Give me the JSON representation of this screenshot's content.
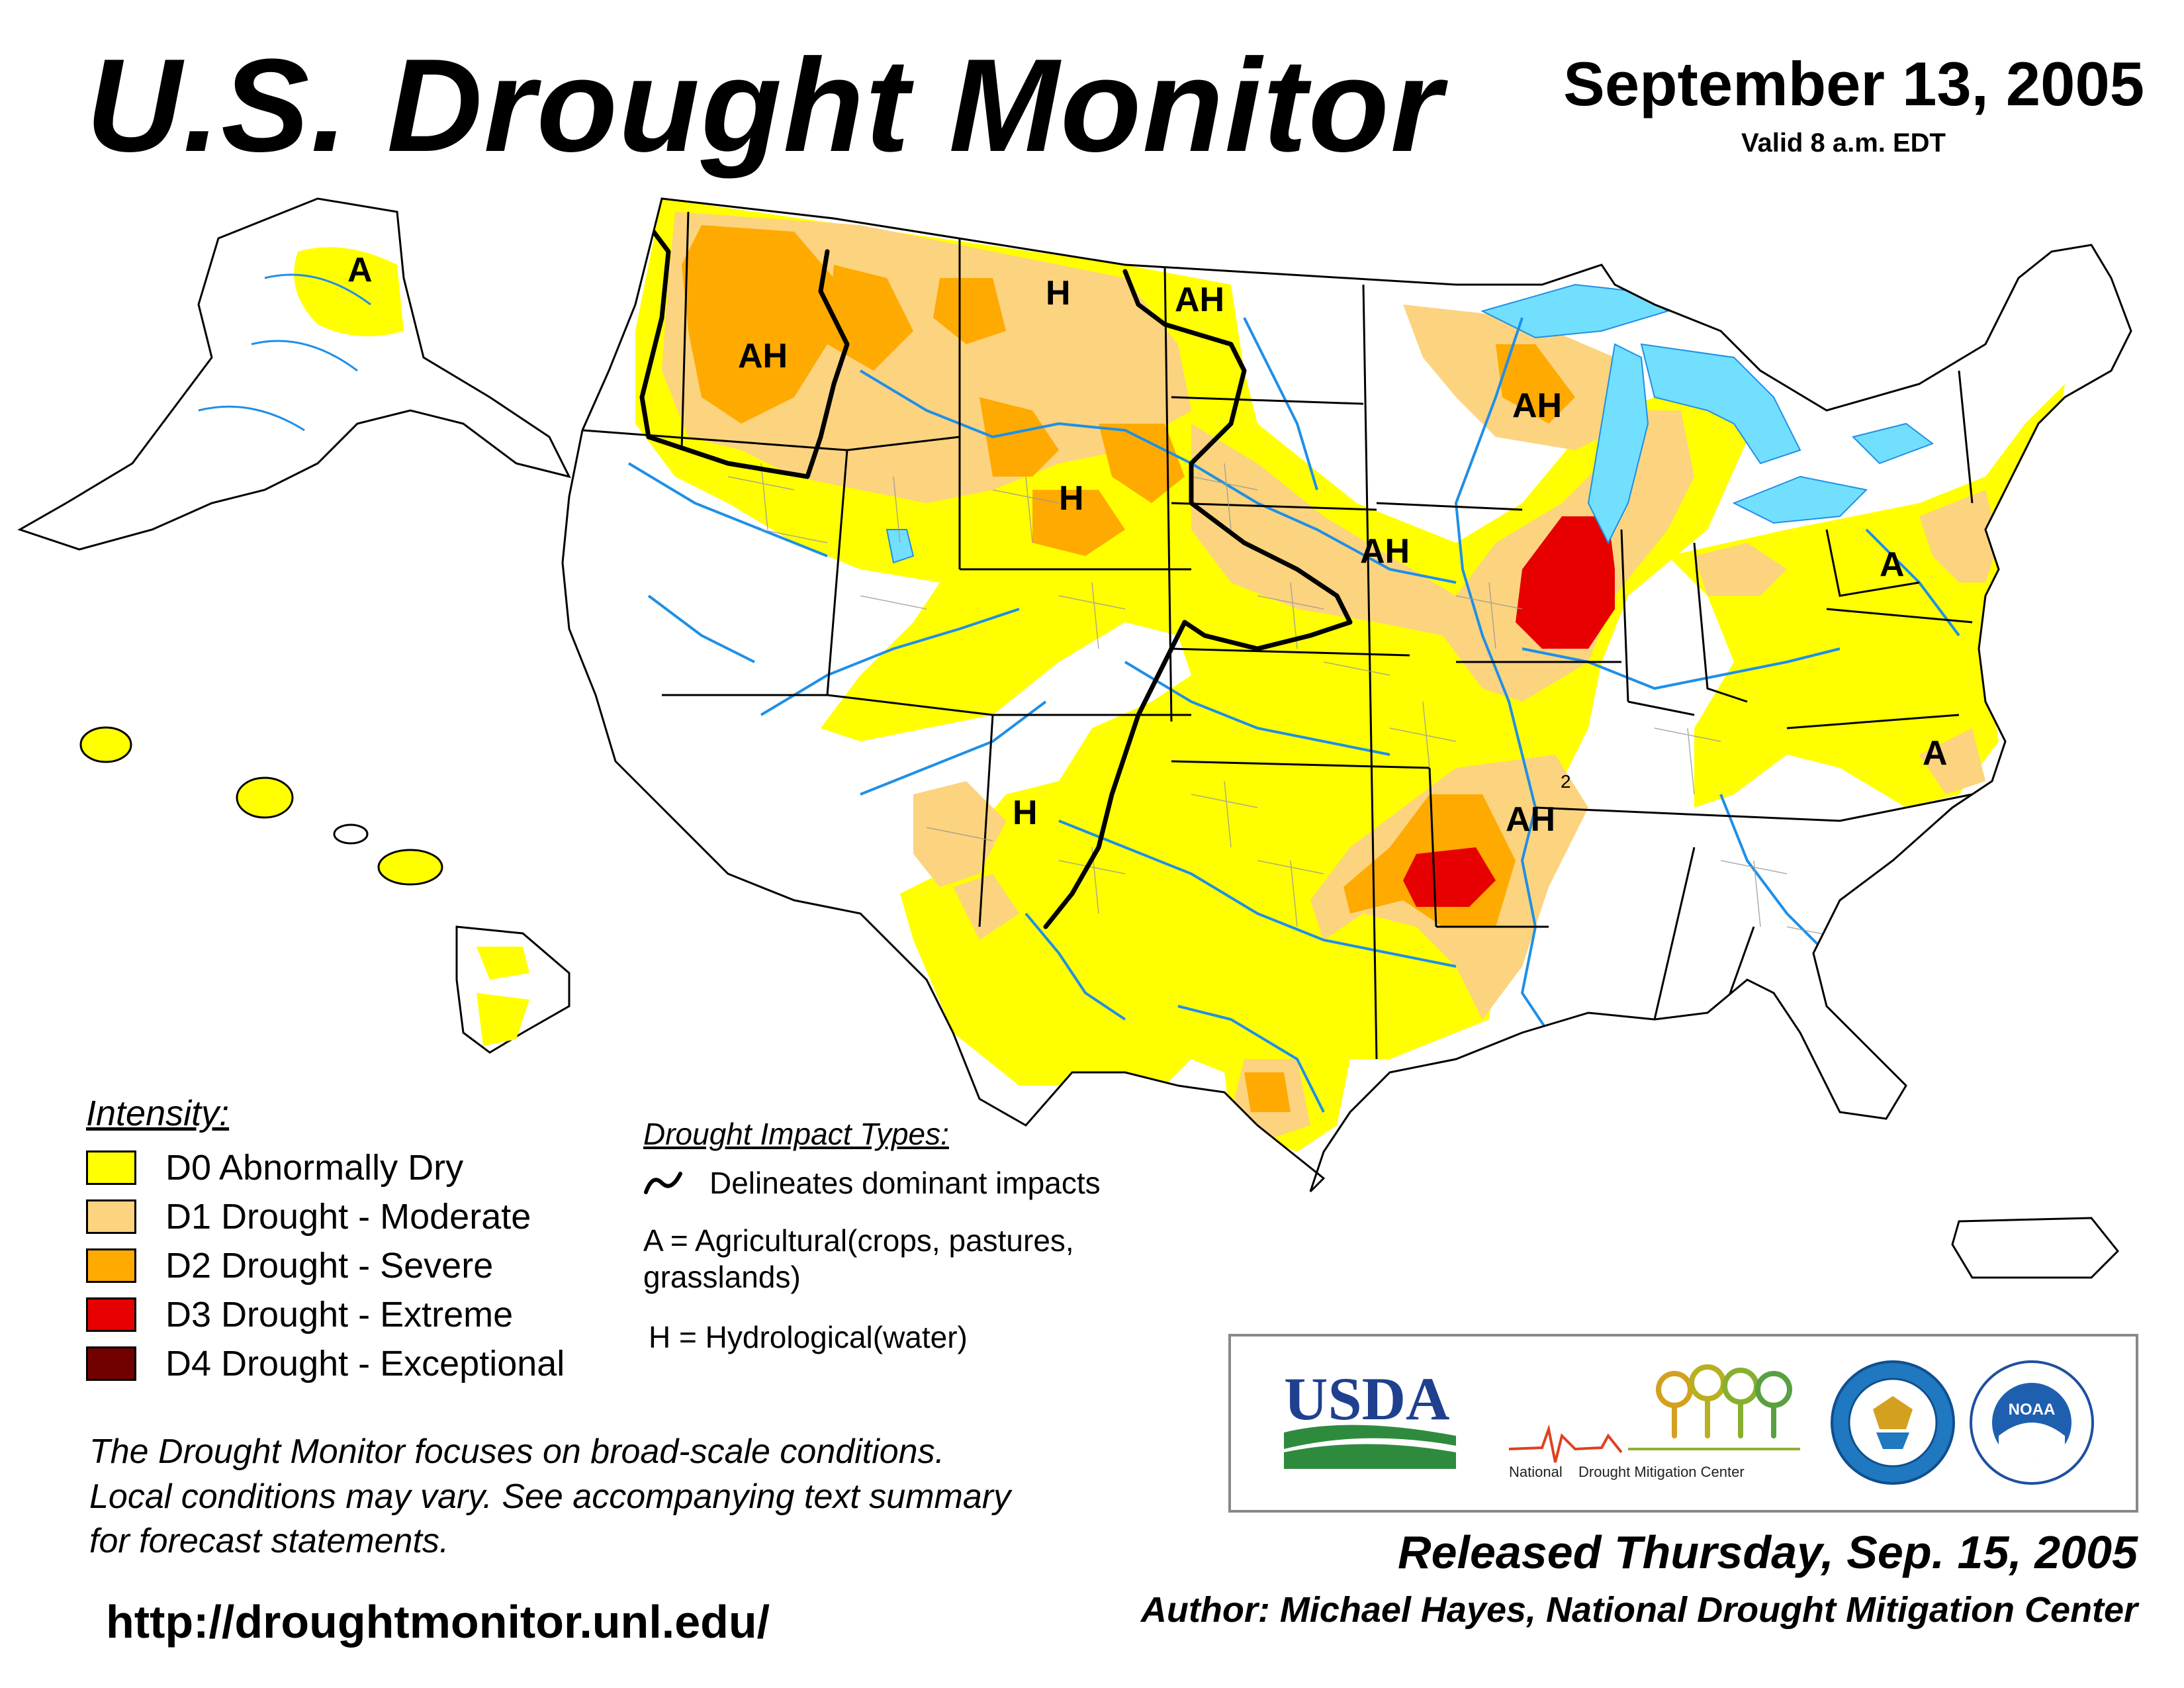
{
  "header": {
    "title": "U.S. Drought Monitor",
    "date": "September 13, 2005",
    "valid": "Valid 8 a.m. EDT"
  },
  "map": {
    "impact_labels": [
      "A",
      "AH",
      "H",
      "AH",
      "AH",
      "H",
      "AH",
      "A",
      "A",
      "H",
      "AH"
    ],
    "colors": {
      "D0": "#ffff00",
      "D1": "#fcd37f",
      "D2": "#ffaa00",
      "D3": "#e60000",
      "D4": "#730000",
      "water": "#73dfff",
      "rivers": "#1f8fe6",
      "borders": "#000000",
      "counties": "#999999"
    }
  },
  "legend": {
    "title": "Intensity:",
    "items": [
      {
        "code": "D0",
        "label": "D0 Abnormally Dry",
        "color": "#ffff00"
      },
      {
        "code": "D1",
        "label": "D1 Drought - Moderate",
        "color": "#fcd37f"
      },
      {
        "code": "D2",
        "label": "D2 Drought - Severe",
        "color": "#ffaa00"
      },
      {
        "code": "D3",
        "label": "D3 Drought - Extreme",
        "color": "#e60000"
      },
      {
        "code": "D4",
        "label": "D4 Drought - Exceptional",
        "color": "#730000"
      }
    ]
  },
  "impacts": {
    "title": "Drought Impact Types:",
    "delineates": "Delineates dominant impacts",
    "agricultural": "A = Agricultural(crops, pastures, grasslands)",
    "hydrological": "H = Hydrological(water)"
  },
  "disclaimer": {
    "line1": "The Drought Monitor focuses on broad-scale conditions.",
    "line2": "Local conditions may vary. See accompanying text summary",
    "line3": "for forecast statements."
  },
  "url": "http://droughtmonitor.unl.edu/",
  "logos": {
    "usda": "USDA",
    "ndmc_left": "National",
    "ndmc_right": "Drought Mitigation Center",
    "doc_icon": "department-of-commerce-seal-icon",
    "noaa_short": "NOAA",
    "noaa_icon": "noaa-seal-icon"
  },
  "footer": {
    "released": "Released Thursday, Sep. 15, 2005",
    "author": "Author: Michael Hayes, National Drought Mitigation Center"
  }
}
